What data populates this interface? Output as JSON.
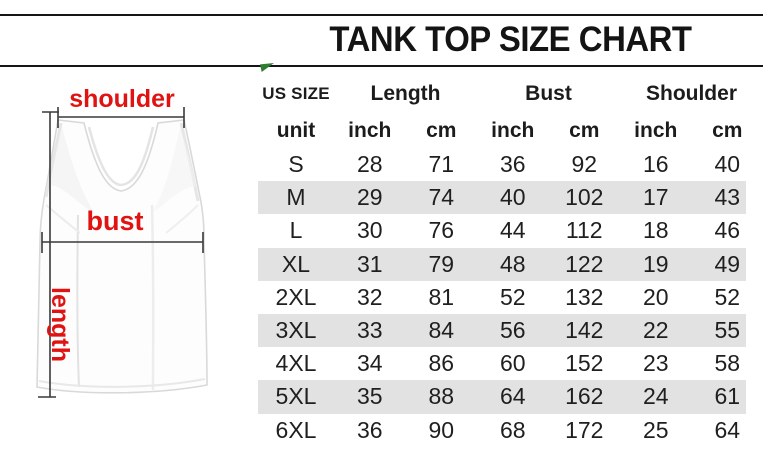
{
  "title": "TANK TOP SIZE CHART",
  "accent_colors": {
    "label_red": "#e01212",
    "stripe_gray": "#e2e2e2",
    "marker_green": "#2e7d32",
    "line_black": "#151515"
  },
  "diagram": {
    "shoulder_label": "shoulder",
    "bust_label": "bust",
    "length_label": "length"
  },
  "table": {
    "size_header": "US SIZE",
    "group_headers": [
      "Length",
      "Bust",
      "Shoulder"
    ],
    "unit_label": "unit",
    "unit_columns": [
      "inch",
      "cm",
      "inch",
      "cm",
      "inch",
      "cm"
    ],
    "rows": [
      {
        "size": "S",
        "values": [
          "28",
          "71",
          "36",
          "92",
          "16",
          "40"
        ],
        "striped": false
      },
      {
        "size": "M",
        "values": [
          "29",
          "74",
          "40",
          "102",
          "17",
          "43"
        ],
        "striped": true
      },
      {
        "size": "L",
        "values": [
          "30",
          "76",
          "44",
          "112",
          "18",
          "46"
        ],
        "striped": false
      },
      {
        "size": "XL",
        "values": [
          "31",
          "79",
          "48",
          "122",
          "19",
          "49"
        ],
        "striped": true
      },
      {
        "size": "2XL",
        "values": [
          "32",
          "81",
          "52",
          "132",
          "20",
          "52"
        ],
        "striped": false
      },
      {
        "size": "3XL",
        "values": [
          "33",
          "84",
          "56",
          "142",
          "22",
          "55"
        ],
        "striped": true
      },
      {
        "size": "4XL",
        "values": [
          "34",
          "86",
          "60",
          "152",
          "23",
          "58"
        ],
        "striped": false
      },
      {
        "size": "5XL",
        "values": [
          "35",
          "88",
          "64",
          "162",
          "24",
          "61"
        ],
        "striped": true
      },
      {
        "size": "6XL",
        "values": [
          "36",
          "90",
          "68",
          "172",
          "25",
          "64"
        ],
        "striped": false
      }
    ]
  },
  "chart_data": {
    "type": "table",
    "title": "TANK TOP SIZE CHART",
    "columns": [
      "US SIZE",
      "Length inch",
      "Length cm",
      "Bust inch",
      "Bust cm",
      "Shoulder inch",
      "Shoulder cm"
    ],
    "rows": [
      [
        "S",
        28,
        71,
        36,
        92,
        16,
        40
      ],
      [
        "M",
        29,
        74,
        40,
        102,
        17,
        43
      ],
      [
        "L",
        30,
        76,
        44,
        112,
        18,
        46
      ],
      [
        "XL",
        31,
        79,
        48,
        122,
        19,
        49
      ],
      [
        "2XL",
        32,
        81,
        52,
        132,
        20,
        52
      ],
      [
        "3XL",
        33,
        84,
        56,
        142,
        22,
        55
      ],
      [
        "4XL",
        34,
        86,
        60,
        152,
        23,
        58
      ],
      [
        "5XL",
        35,
        88,
        64,
        162,
        24,
        61
      ],
      [
        "6XL",
        36,
        90,
        68,
        172,
        25,
        64
      ]
    ],
    "annotations": [
      "shoulder",
      "bust",
      "length"
    ]
  }
}
